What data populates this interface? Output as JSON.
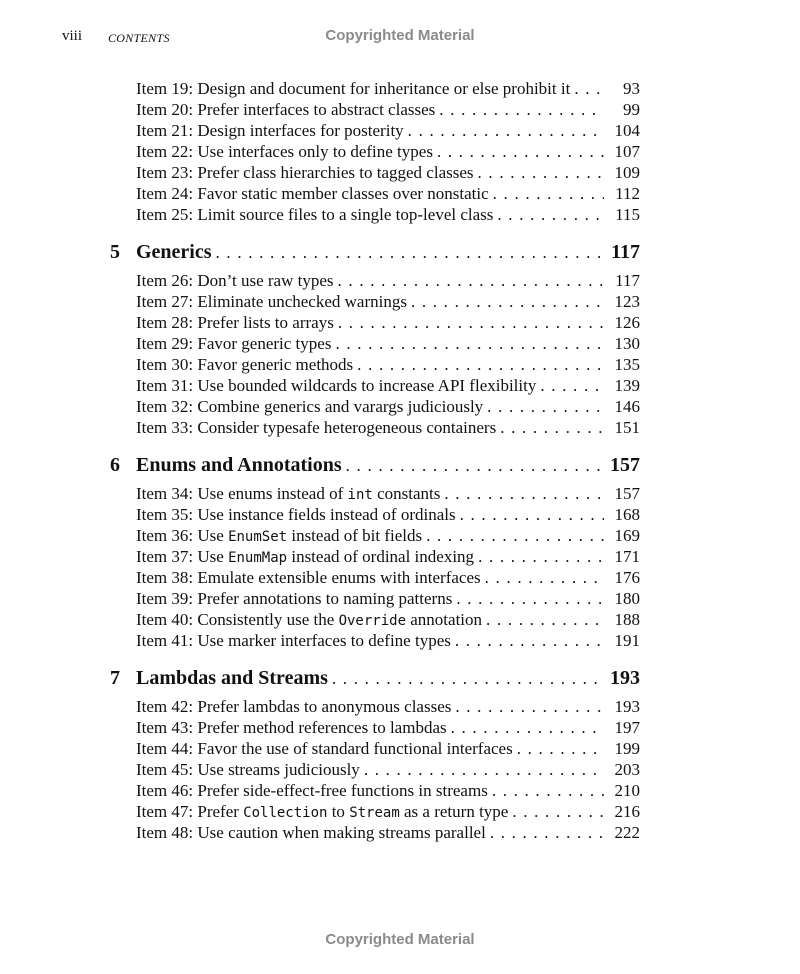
{
  "header": {
    "folio": "viii",
    "running_title": "CONTENTS",
    "watermark": "Copyrighted Material"
  },
  "footer": {
    "watermark": "Copyrighted Material"
  },
  "sections": [
    {
      "chapter": null,
      "items": [
        {
          "parts": [
            {
              "t": "Item 19: Design and document for inheritance or else prohibit it"
            }
          ],
          "page": "93"
        },
        {
          "parts": [
            {
              "t": "Item 20: Prefer interfaces to abstract classes"
            }
          ],
          "page": "99"
        },
        {
          "parts": [
            {
              "t": "Item 21: Design interfaces for posterity"
            }
          ],
          "page": "104"
        },
        {
          "parts": [
            {
              "t": "Item 22: Use interfaces only to define types"
            }
          ],
          "page": "107"
        },
        {
          "parts": [
            {
              "t": "Item 23: Prefer class hierarchies to tagged classes"
            }
          ],
          "page": "109"
        },
        {
          "parts": [
            {
              "t": "Item 24: Favor static member classes over nonstatic"
            }
          ],
          "page": "112"
        },
        {
          "parts": [
            {
              "t": "Item 25: Limit source files to a single top-level class"
            }
          ],
          "page": "115"
        }
      ]
    },
    {
      "chapter": {
        "number": "5",
        "title": "Generics",
        "page": "117"
      },
      "items": [
        {
          "parts": [
            {
              "t": "Item 26: Don’t use raw types"
            }
          ],
          "page": "117"
        },
        {
          "parts": [
            {
              "t": "Item 27: Eliminate unchecked warnings"
            }
          ],
          "page": "123"
        },
        {
          "parts": [
            {
              "t": "Item 28: Prefer lists to arrays"
            }
          ],
          "page": "126"
        },
        {
          "parts": [
            {
              "t": "Item 29: Favor generic types"
            }
          ],
          "page": "130"
        },
        {
          "parts": [
            {
              "t": "Item 30: Favor generic methods"
            }
          ],
          "page": "135"
        },
        {
          "parts": [
            {
              "t": "Item 31: Use bounded wildcards to increase API flexibility"
            }
          ],
          "page": "139"
        },
        {
          "parts": [
            {
              "t": "Item 32: Combine generics and varargs judiciously"
            }
          ],
          "page": "146"
        },
        {
          "parts": [
            {
              "t": "Item 33: Consider typesafe heterogeneous containers"
            }
          ],
          "page": "151"
        }
      ]
    },
    {
      "chapter": {
        "number": "6",
        "title": "Enums and Annotations",
        "page": "157"
      },
      "items": [
        {
          "parts": [
            {
              "t": "Item 34: Use enums instead of "
            },
            {
              "code": "int"
            },
            {
              "t": " constants"
            }
          ],
          "page": "157"
        },
        {
          "parts": [
            {
              "t": "Item 35: Use instance fields instead of ordinals"
            }
          ],
          "page": "168"
        },
        {
          "parts": [
            {
              "t": "Item 36: Use "
            },
            {
              "code": "EnumSet"
            },
            {
              "t": " instead of bit fields"
            }
          ],
          "page": "169"
        },
        {
          "parts": [
            {
              "t": "Item 37: Use "
            },
            {
              "code": "EnumMap"
            },
            {
              "t": " instead of ordinal indexing"
            }
          ],
          "page": "171"
        },
        {
          "parts": [
            {
              "t": "Item 38: Emulate extensible enums with interfaces"
            }
          ],
          "page": "176"
        },
        {
          "parts": [
            {
              "t": "Item 39: Prefer annotations to naming patterns"
            }
          ],
          "page": "180"
        },
        {
          "parts": [
            {
              "t": "Item 40: Consistently use the "
            },
            {
              "code": "Override"
            },
            {
              "t": " annotation"
            }
          ],
          "page": "188"
        },
        {
          "parts": [
            {
              "t": "Item 41: Use marker interfaces to define types"
            }
          ],
          "page": "191"
        }
      ]
    },
    {
      "chapter": {
        "number": "7",
        "title": "Lambdas and Streams",
        "page": "193"
      },
      "items": [
        {
          "parts": [
            {
              "t": "Item 42: Prefer lambdas to anonymous classes"
            }
          ],
          "page": "193"
        },
        {
          "parts": [
            {
              "t": "Item 43: Prefer method references to lambdas"
            }
          ],
          "page": "197"
        },
        {
          "parts": [
            {
              "t": "Item 44: Favor the use of standard functional interfaces"
            }
          ],
          "page": "199"
        },
        {
          "parts": [
            {
              "t": "Item 45: Use streams judiciously"
            }
          ],
          "page": "203"
        },
        {
          "parts": [
            {
              "t": "Item 46: Prefer side-effect-free functions in streams"
            }
          ],
          "page": "210"
        },
        {
          "parts": [
            {
              "t": "Item 47: Prefer "
            },
            {
              "code": "Collection"
            },
            {
              "t": " to "
            },
            {
              "code": "Stream"
            },
            {
              "t": " as a return type"
            }
          ],
          "page": "216"
        },
        {
          "parts": [
            {
              "t": "Item 48: Use caution when making streams parallel"
            }
          ],
          "page": "222"
        }
      ]
    }
  ]
}
